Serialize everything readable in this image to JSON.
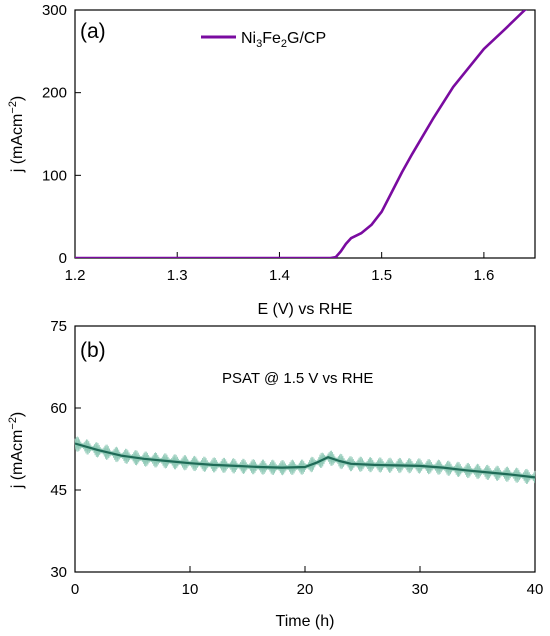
{
  "chart_data": [
    {
      "type": "line",
      "panel_label": "(a)",
      "xlabel": "E (V) vs RHE",
      "ylabel": {
        "main": "j (mAcm",
        "sup": "−2",
        "tail": ")"
      },
      "xlim": [
        1.2,
        1.65
      ],
      "ylim": [
        0,
        300
      ],
      "xticks": [
        "1.2",
        "1.3",
        "1.4",
        "1.5",
        "1.6"
      ],
      "yticks": [
        "0",
        "100",
        "200",
        "300"
      ],
      "legend_position": "top",
      "series": [
        {
          "name": {
            "p1": "Ni",
            "s1": "3",
            "p2": "Fe",
            "s2": "2",
            "p3": "G/CP"
          },
          "color": "#7a0ba0",
          "x": [
            1.2,
            1.3,
            1.4,
            1.45,
            1.455,
            1.46,
            1.465,
            1.47,
            1.48,
            1.49,
            1.5,
            1.51,
            1.52,
            1.53,
            1.55,
            1.57,
            1.6,
            1.62,
            1.64,
            1.645
          ],
          "y": [
            0,
            0,
            0,
            0,
            1,
            8,
            17,
            24,
            30,
            40,
            56,
            80,
            104,
            126,
            168,
            207,
            253,
            276,
            300,
            304
          ]
        }
      ]
    },
    {
      "type": "line",
      "panel_label": "(b)",
      "annotation": "PSAT @ 1.5 V vs RHE",
      "xlabel": "Time (h)",
      "ylabel": {
        "main": "j (mAcm",
        "sup": "−2",
        "tail": ")"
      },
      "xlim": [
        0,
        40
      ],
      "ylim": [
        30,
        75
      ],
      "xticks": [
        "0",
        "10",
        "20",
        "30",
        "40"
      ],
      "yticks": [
        "30",
        "45",
        "60",
        "75"
      ],
      "series": [
        {
          "color": "#1e6a56",
          "noise_color": "#8fc9b6",
          "x": [
            0,
            2,
            4,
            6,
            8,
            10,
            12,
            14,
            16,
            18,
            20,
            21,
            22,
            23,
            24,
            26,
            28,
            30,
            32,
            34,
            36,
            38,
            40
          ],
          "y": [
            53.5,
            52.3,
            51.3,
            50.7,
            50.3,
            49.9,
            49.6,
            49.4,
            49.2,
            49.1,
            49.2,
            50.0,
            51.0,
            50.3,
            49.8,
            49.6,
            49.5,
            49.4,
            49.1,
            48.6,
            48.2,
            47.8,
            47.3
          ]
        }
      ]
    }
  ]
}
